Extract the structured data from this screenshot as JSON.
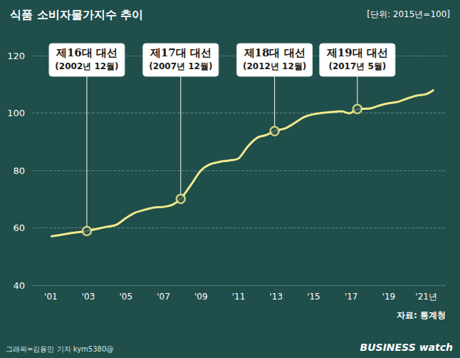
{
  "chart_data": {
    "type": "line",
    "title": "식품 소비자물가지수 추이",
    "subtitle": "[단위: 2015년=100]",
    "source": "자료: 통계청",
    "credit": "그래픽=김용민 기자 kym5380@",
    "logo": "BUSINESS watch",
    "x": [
      2001,
      2002,
      2002.92,
      2004,
      2004.5,
      2005,
      2005.5,
      2006,
      2006.5,
      2007,
      2007.5,
      2007.92,
      2008.5,
      2009,
      2009.5,
      2010,
      2010.5,
      2011,
      2011.5,
      2012,
      2012.5,
      2012.92,
      2013.5,
      2014,
      2014.5,
      2015,
      2015.5,
      2016,
      2016.5,
      2016.9,
      2017.33,
      2018,
      2018.5,
      2019,
      2019.5,
      2020,
      2020.5,
      2021,
      2021.4
    ],
    "values": [
      57,
      58.1,
      58.9,
      60.4,
      61.1,
      63.4,
      65.3,
      66.3,
      67.1,
      67.3,
      68.1,
      70.1,
      75.3,
      80,
      82.2,
      83,
      83.5,
      84.2,
      88.4,
      91.4,
      92.4,
      93.7,
      94.7,
      96.6,
      98.6,
      99.6,
      100.1,
      100.4,
      100.6,
      99.9,
      101.4,
      101.6,
      102.6,
      103.4,
      103.9,
      105.1,
      106.1,
      106.6,
      108.1
    ],
    "color": "#f2ea8c",
    "marker": "none",
    "xlim": [
      2000,
      2022
    ],
    "xticks": [
      {
        "value": 2001,
        "label": "'01"
      },
      {
        "value": 2003,
        "label": "'03"
      },
      {
        "value": 2005,
        "label": "'05"
      },
      {
        "value": 2007,
        "label": "'07"
      },
      {
        "value": 2009,
        "label": "'09"
      },
      {
        "value": 2011,
        "label": "'11"
      },
      {
        "value": 2013,
        "label": "'13"
      },
      {
        "value": 2015,
        "label": "'15"
      },
      {
        "value": 2017,
        "label": "'17"
      },
      {
        "value": 2019,
        "label": "'19"
      },
      {
        "value": 2021,
        "label": "'21년"
      }
    ],
    "ylim": [
      40,
      120
    ],
    "yticks": [
      40,
      60,
      80,
      100,
      120
    ],
    "grid": true,
    "annotations": [
      {
        "x": 2002.92,
        "y": 58.9,
        "label": "제16대 대선",
        "sublabel": "(2002년 12월)",
        "marker": "circle"
      },
      {
        "x": 2007.92,
        "y": 70.1,
        "label": "제17대 대선",
        "sublabel": "(2007년 12월)",
        "marker": "circle"
      },
      {
        "x": 2012.92,
        "y": 93.7,
        "label": "제18대 대선",
        "sublabel": "(2012년 12월)",
        "marker": "circle"
      },
      {
        "x": 2017.33,
        "y": 101.4,
        "label": "제19대 대선",
        "sublabel": "(2017년 5월)",
        "marker": "circle"
      }
    ]
  }
}
